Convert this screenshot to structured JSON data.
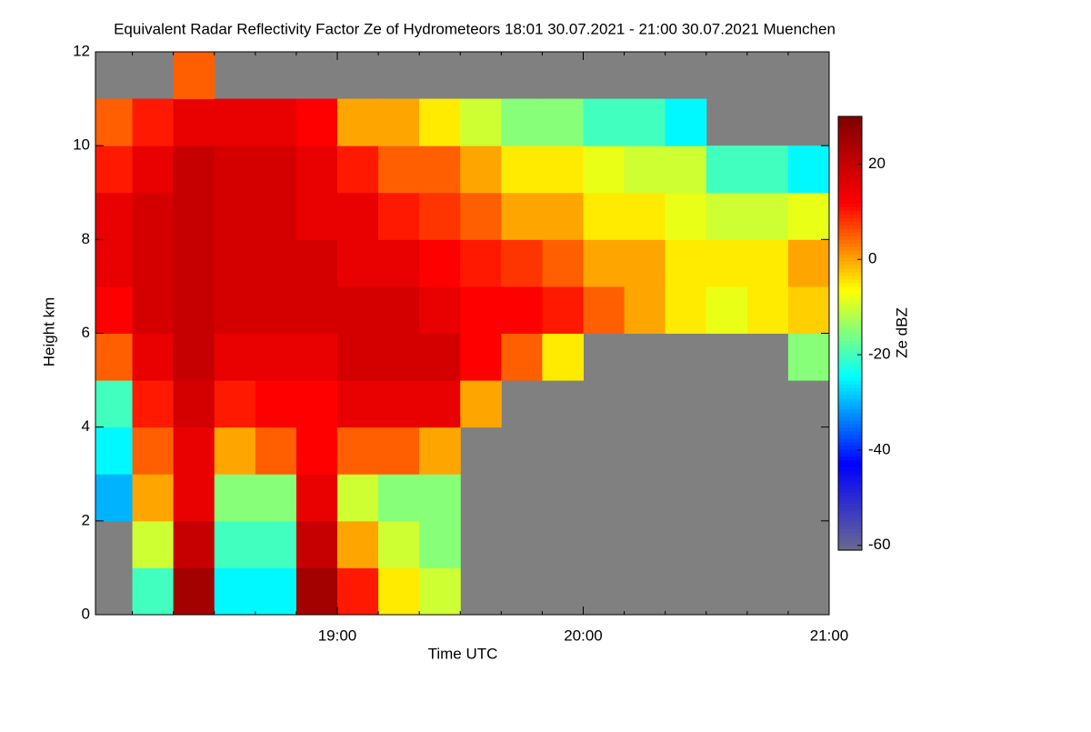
{
  "chart_data": {
    "type": "heatmap",
    "title": "Equivalent Radar Reflectivity Factor Ze of Hydrometeors   18:01 30.07.2021 - 21:00 30.07.2021 Muenchen",
    "x_label": "Time UTC",
    "y_label": "Height km",
    "colorbar_label": "Ze dBZ",
    "x": [
      "18:05",
      "18:15",
      "18:25",
      "18:35",
      "18:45",
      "18:55",
      "19:05",
      "19:15",
      "19:25",
      "19:35",
      "19:45",
      "19:55",
      "20:05",
      "20:15",
      "20:25",
      "20:35",
      "20:45",
      "20:55"
    ],
    "y": [
      0.5,
      1.5,
      2.5,
      3.5,
      4.5,
      5.5,
      6.5,
      7.5,
      8.5,
      9.5,
      10.5,
      11.5
    ],
    "z": [
      [
        null,
        -20,
        25,
        -25,
        -25,
        25,
        10,
        -5,
        -10,
        null,
        null,
        null,
        null,
        null,
        null,
        null,
        null,
        null
      ],
      [
        null,
        -10,
        20,
        -20,
        -20,
        20,
        0,
        -10,
        -15,
        null,
        null,
        null,
        null,
        null,
        null,
        null,
        null,
        null
      ],
      [
        -30,
        0,
        15,
        -15,
        -15,
        15,
        -10,
        -15,
        -15,
        null,
        null,
        null,
        null,
        null,
        null,
        null,
        null,
        null
      ],
      [
        -25,
        5,
        15,
        0,
        5,
        12,
        5,
        5,
        0,
        null,
        null,
        null,
        null,
        null,
        null,
        null,
        null,
        null
      ],
      [
        -20,
        10,
        18,
        10,
        12,
        12,
        15,
        15,
        15,
        0,
        null,
        null,
        null,
        null,
        null,
        null,
        null,
        null
      ],
      [
        5,
        15,
        20,
        15,
        15,
        15,
        18,
        18,
        18,
        12,
        5,
        -5,
        null,
        null,
        null,
        null,
        null,
        -15
      ],
      [
        12,
        18,
        20,
        18,
        18,
        18,
        18,
        18,
        15,
        12,
        12,
        10,
        5,
        0,
        -5,
        -8,
        -5,
        -3
      ],
      [
        15,
        18,
        20,
        18,
        18,
        18,
        15,
        15,
        12,
        10,
        8,
        5,
        0,
        0,
        -5,
        -5,
        -5,
        0
      ],
      [
        15,
        18,
        20,
        18,
        18,
        15,
        15,
        10,
        8,
        5,
        0,
        0,
        -5,
        -5,
        -8,
        -10,
        -10,
        -8
      ],
      [
        10,
        15,
        20,
        18,
        18,
        15,
        10,
        5,
        5,
        0,
        -5,
        -5,
        -8,
        -10,
        -10,
        -20,
        -20,
        -25
      ],
      [
        5,
        10,
        15,
        15,
        15,
        12,
        0,
        0,
        -5,
        -10,
        -15,
        -15,
        -20,
        -20,
        -25,
        null,
        null,
        null
      ],
      [
        null,
        null,
        5,
        null,
        null,
        null,
        null,
        null,
        null,
        null,
        null,
        null,
        null,
        null,
        null,
        null,
        null,
        null
      ]
    ],
    "xlim": [
      "18:01",
      "21:00"
    ],
    "xticks": [
      "19:00",
      "20:00",
      "21:00"
    ],
    "ylim": [
      0,
      12
    ],
    "yticks": [
      0,
      2,
      4,
      6,
      8,
      10,
      12
    ],
    "zlim": [
      -61,
      30
    ],
    "zticks": [
      -60,
      -40,
      -20,
      0,
      20
    ],
    "colormap": [
      "#6a6a8e",
      "#0000ff",
      "#00ffff",
      "#ffff00",
      "#ff0000",
      "#800000"
    ],
    "missing_color": "#808080"
  }
}
